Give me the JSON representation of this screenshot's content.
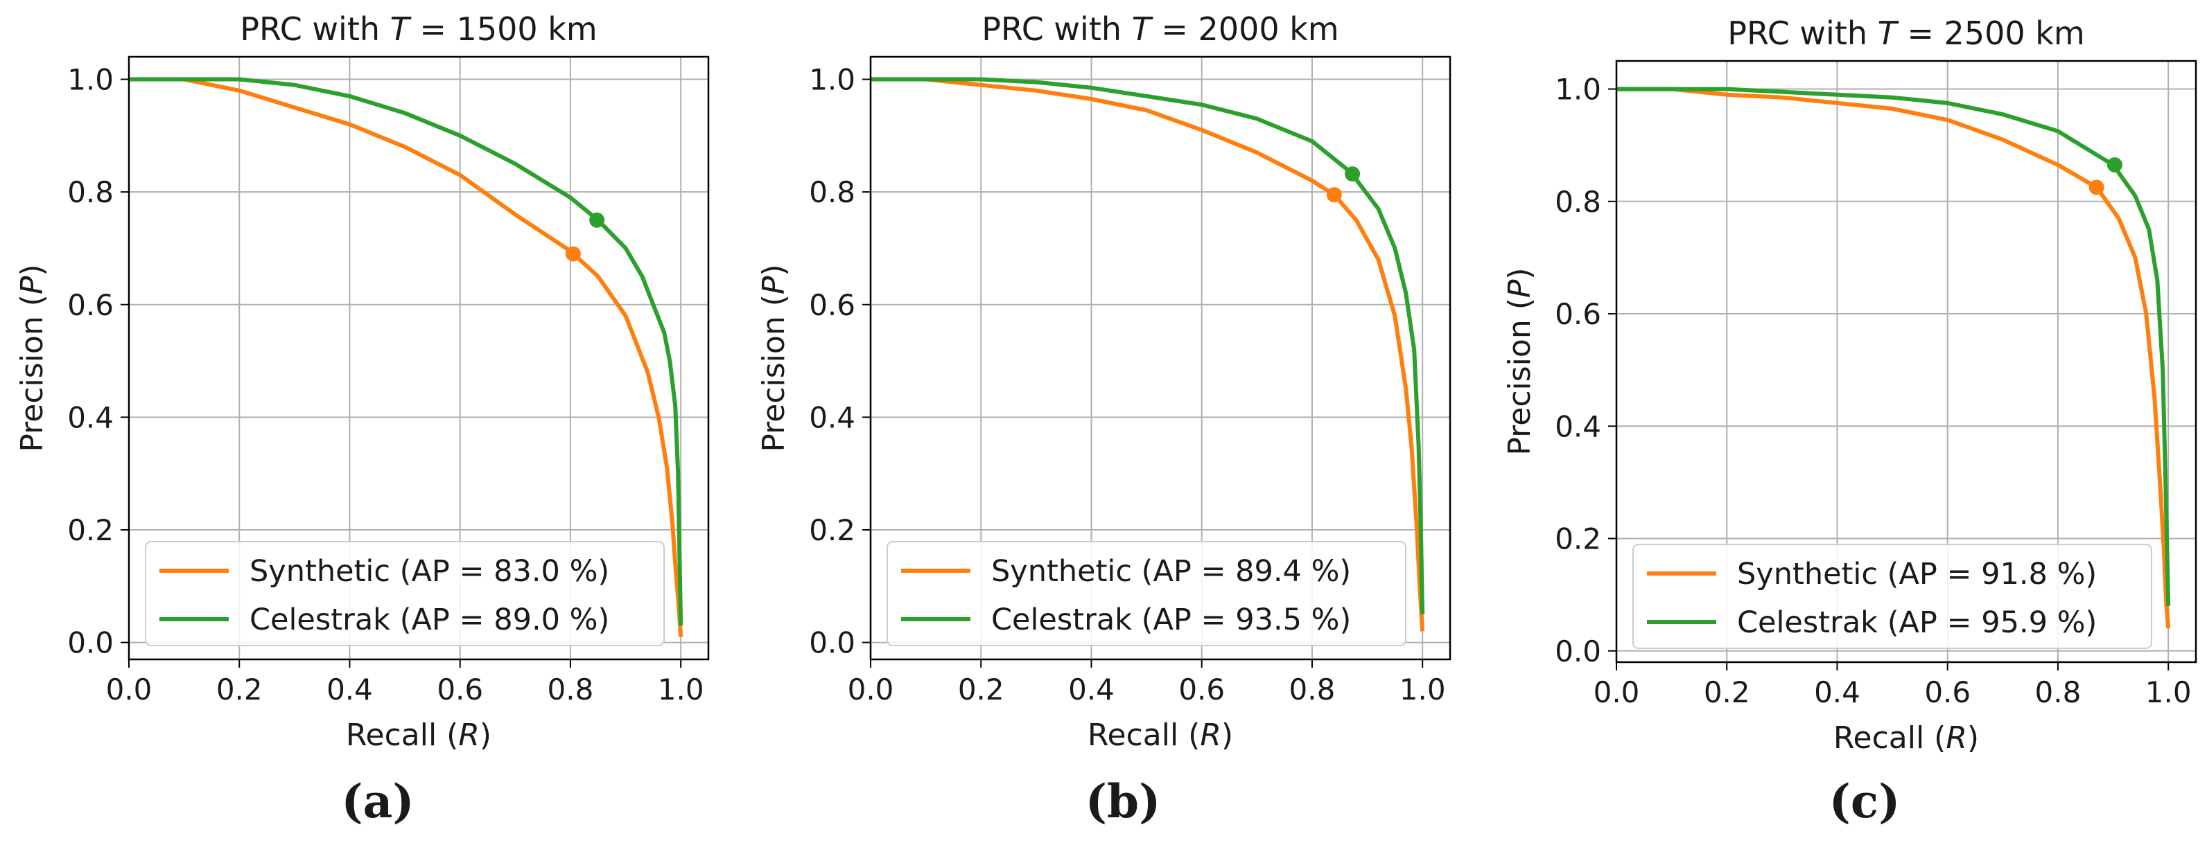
{
  "figure": {
    "colors": {
      "synthetic": "#ff7f0e",
      "celestrak": "#2ca02c",
      "grid": "#b0b0b0",
      "axis": "#000000"
    }
  },
  "chart_data": [
    {
      "type": "line",
      "title_prefix": "PRC with ",
      "title_var": "T",
      "title_suffix": " = 1500 km",
      "xlabel": "Recall (",
      "xlabel_var": "R",
      "xlabel_end": ")",
      "ylabel": "Precision (",
      "ylabel_var": "P",
      "ylabel_end": ")",
      "xlim": [
        0,
        1.05
      ],
      "ylim": [
        -0.03,
        1.04
      ],
      "xticks": [
        0.0,
        0.2,
        0.4,
        0.6,
        0.8,
        1.0
      ],
      "xtick_labels": [
        "0.0",
        "0.2",
        "0.4",
        "0.6",
        "0.8",
        "1.0"
      ],
      "yticks": [
        0.0,
        0.2,
        0.4,
        0.6,
        0.8,
        1.0
      ],
      "ytick_labels": [
        "0.0",
        "0.2",
        "0.4",
        "0.6",
        "0.8",
        "1.0"
      ],
      "grid": true,
      "legend_position": "lower-left",
      "caption": "(a)",
      "series": [
        {
          "name": "Synthetic (AP = 83.0 %)",
          "color": "#ff7f0e",
          "x": [
            0.0,
            0.1,
            0.2,
            0.3,
            0.4,
            0.5,
            0.6,
            0.7,
            0.8,
            0.85,
            0.9,
            0.94,
            0.96,
            0.975,
            0.985,
            0.99,
            0.995,
            0.998,
            1.0
          ],
          "y": [
            1.0,
            1.0,
            0.98,
            0.95,
            0.92,
            0.88,
            0.83,
            0.76,
            0.695,
            0.65,
            0.58,
            0.48,
            0.4,
            0.31,
            0.21,
            0.14,
            0.08,
            0.04,
            0.01
          ],
          "marker": {
            "x": 0.805,
            "y": 0.69
          }
        },
        {
          "name": "Celestrak (AP = 89.0 %)",
          "color": "#2ca02c",
          "x": [
            0.0,
            0.1,
            0.2,
            0.3,
            0.4,
            0.5,
            0.6,
            0.7,
            0.8,
            0.85,
            0.9,
            0.93,
            0.95,
            0.97,
            0.98,
            0.99,
            0.995,
            1.0
          ],
          "y": [
            1.0,
            1.0,
            1.0,
            0.99,
            0.97,
            0.94,
            0.9,
            0.85,
            0.79,
            0.75,
            0.7,
            0.65,
            0.6,
            0.55,
            0.5,
            0.42,
            0.3,
            0.03
          ],
          "marker": {
            "x": 0.848,
            "y": 0.75
          }
        }
      ]
    },
    {
      "type": "line",
      "title_prefix": "PRC with ",
      "title_var": "T",
      "title_suffix": " = 2000 km",
      "xlabel": "Recall (",
      "xlabel_var": "R",
      "xlabel_end": ")",
      "ylabel": "Precision (",
      "ylabel_var": "P",
      "ylabel_end": ")",
      "xlim": [
        0,
        1.05
      ],
      "ylim": [
        -0.03,
        1.04
      ],
      "xticks": [
        0.0,
        0.2,
        0.4,
        0.6,
        0.8,
        1.0
      ],
      "xtick_labels": [
        "0.0",
        "0.2",
        "0.4",
        "0.6",
        "0.8",
        "1.0"
      ],
      "yticks": [
        0.0,
        0.2,
        0.4,
        0.6,
        0.8,
        1.0
      ],
      "ytick_labels": [
        "0.0",
        "0.2",
        "0.4",
        "0.6",
        "0.8",
        "1.0"
      ],
      "grid": true,
      "legend_position": "lower-left",
      "caption": "(b)",
      "series": [
        {
          "name": "Synthetic (AP = 89.4 %)",
          "color": "#ff7f0e",
          "x": [
            0.0,
            0.1,
            0.2,
            0.3,
            0.4,
            0.5,
            0.6,
            0.7,
            0.8,
            0.84,
            0.88,
            0.92,
            0.95,
            0.97,
            0.98,
            0.99,
            0.995,
            1.0
          ],
          "y": [
            1.0,
            1.0,
            0.99,
            0.98,
            0.965,
            0.945,
            0.91,
            0.87,
            0.82,
            0.795,
            0.75,
            0.68,
            0.58,
            0.45,
            0.35,
            0.2,
            0.1,
            0.02
          ],
          "marker": {
            "x": 0.84,
            "y": 0.795
          }
        },
        {
          "name": "Celestrak (AP = 93.5 %)",
          "color": "#2ca02c",
          "x": [
            0.0,
            0.1,
            0.2,
            0.3,
            0.4,
            0.5,
            0.6,
            0.7,
            0.8,
            0.87,
            0.92,
            0.95,
            0.97,
            0.985,
            0.993,
            0.997,
            1.0
          ],
          "y": [
            1.0,
            1.0,
            1.0,
            0.995,
            0.985,
            0.97,
            0.955,
            0.93,
            0.89,
            0.835,
            0.77,
            0.7,
            0.62,
            0.52,
            0.35,
            0.2,
            0.05
          ],
          "marker": {
            "x": 0.873,
            "y": 0.832
          }
        }
      ]
    },
    {
      "type": "line",
      "title_prefix": "PRC with ",
      "title_var": "T",
      "title_suffix": " = 2500 km",
      "xlabel": "Recall (",
      "xlabel_var": "R",
      "xlabel_end": ")",
      "ylabel": "Precision (",
      "ylabel_var": "P",
      "ylabel_end": ")",
      "xlim": [
        0,
        1.05
      ],
      "ylim": [
        -0.02,
        1.05
      ],
      "xticks": [
        0.0,
        0.2,
        0.4,
        0.6,
        0.8,
        1.0
      ],
      "xtick_labels": [
        "0.0",
        "0.2",
        "0.4",
        "0.6",
        "0.8",
        "1.0"
      ],
      "yticks": [
        0.0,
        0.2,
        0.4,
        0.6,
        0.8,
        1.0
      ],
      "ytick_labels": [
        "0.0",
        "0.2",
        "0.4",
        "0.6",
        "0.8",
        "1.0"
      ],
      "grid": true,
      "legend_position": "lower-left",
      "caption": "(c)",
      "series": [
        {
          "name": "Synthetic (AP = 91.8 %)",
          "color": "#ff7f0e",
          "x": [
            0.0,
            0.1,
            0.2,
            0.3,
            0.4,
            0.5,
            0.6,
            0.7,
            0.8,
            0.87,
            0.91,
            0.94,
            0.96,
            0.975,
            0.985,
            0.992,
            0.996,
            1.0
          ],
          "y": [
            1.0,
            1.0,
            0.99,
            0.985,
            0.975,
            0.965,
            0.945,
            0.91,
            0.865,
            0.825,
            0.77,
            0.7,
            0.6,
            0.45,
            0.3,
            0.18,
            0.09,
            0.04
          ],
          "marker": {
            "x": 0.87,
            "y": 0.825
          }
        },
        {
          "name": "Celestrak (AP = 95.9 %)",
          "color": "#2ca02c",
          "x": [
            0.0,
            0.1,
            0.2,
            0.3,
            0.4,
            0.5,
            0.6,
            0.7,
            0.8,
            0.9,
            0.94,
            0.965,
            0.98,
            0.99,
            0.995,
            1.0
          ],
          "y": [
            1.0,
            1.0,
            1.0,
            0.995,
            0.99,
            0.985,
            0.975,
            0.955,
            0.925,
            0.865,
            0.81,
            0.75,
            0.66,
            0.5,
            0.3,
            0.08
          ],
          "marker": {
            "x": 0.903,
            "y": 0.865
          }
        }
      ]
    }
  ]
}
